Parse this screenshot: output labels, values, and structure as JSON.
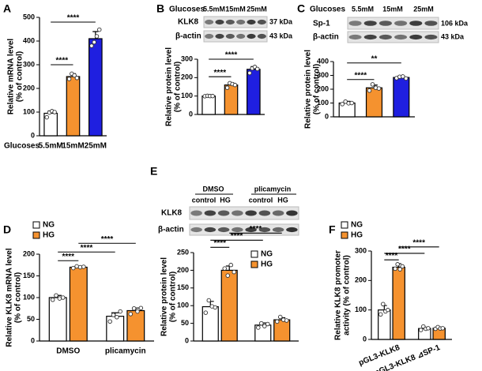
{
  "panel_labels": [
    "A",
    "B",
    "C",
    "D",
    "E",
    "F"
  ],
  "blots": [
    {
      "header": "Glucoses",
      "lanes": [
        "5.5mM",
        "15mM",
        "25mM"
      ],
      "rows": [
        {
          "name": "KLK8",
          "size": "37 kDa"
        },
        {
          "name": "β-actin",
          "size": "43 kDa"
        }
      ]
    },
    {
      "header": "Glucoses",
      "lanes": [
        "5.5mM",
        "15mM",
        "25mM"
      ],
      "rows": [
        {
          "name": "Sp-1",
          "size": "106 kDa"
        },
        {
          "name": "β-actin",
          "size": "43 kDa"
        }
      ]
    },
    {
      "groups": [
        "DMSO",
        "plicamycin"
      ],
      "lanes": [
        "control",
        "HG",
        "control",
        "HG"
      ],
      "rows": [
        {
          "name": "KLK8"
        },
        {
          "name": "β-actin"
        }
      ]
    }
  ],
  "chart_data": [
    {
      "type": "bar",
      "ylabel": [
        "Relative mRNA level",
        "(% of control)"
      ],
      "xlabel": "Glucoses",
      "categories": [
        "5.5mM",
        "15mM",
        "25mM"
      ],
      "values": [
        95,
        250,
        410
      ],
      "errors": [
        10,
        12,
        30
      ],
      "points": [
        [
          78,
          98,
          104,
          100
        ],
        [
          240,
          262,
          255,
          244
        ],
        [
          380,
          395,
          420,
          448
        ]
      ],
      "colors": [
        "#ffffff",
        "#f5922f",
        "#1f1fe0"
      ],
      "ylim": [
        0,
        500
      ],
      "yticks": [
        0,
        100,
        200,
        300,
        400,
        500
      ],
      "annotations": [
        "****",
        "****"
      ]
    },
    {
      "type": "bar",
      "ylabel": [
        "Relative protein level",
        "(% of control)"
      ],
      "categories": [
        null,
        null,
        null
      ],
      "values": [
        100,
        160,
        245
      ],
      "errors": [
        3,
        12,
        15
      ],
      "points": [
        [
          99,
          101,
          100,
          100
        ],
        [
          145,
          170,
          165,
          160
        ],
        [
          225,
          250,
          258,
          247
        ]
      ],
      "colors": [
        "#ffffff",
        "#f5922f",
        "#1f1fe0"
      ],
      "ylim": [
        0,
        300
      ],
      "yticks": [
        0,
        100,
        200,
        300
      ],
      "annotations": [
        "****",
        "****"
      ]
    },
    {
      "type": "bar",
      "ylabel": [
        "Relative protein level",
        "(% of control)"
      ],
      "categories": [
        null,
        null,
        null
      ],
      "values": [
        100,
        210,
        285
      ],
      "errors": [
        12,
        20,
        12
      ],
      "points": [
        [
          92,
          110,
          98,
          100
        ],
        [
          190,
          235,
          210,
          205
        ],
        [
          280,
          290,
          292,
          278
        ]
      ],
      "colors": [
        "#ffffff",
        "#f5922f",
        "#1f1fe0"
      ],
      "ylim": [
        0,
        400
      ],
      "yticks": [
        0,
        100,
        200,
        300,
        400
      ],
      "annotations": [
        "****",
        "**"
      ]
    },
    {
      "type": "grouped_bar",
      "ylabel": [
        "Relative KLK8 mRNA level",
        "(% of control)"
      ],
      "categories": [
        "DMSO",
        "plicamycin"
      ],
      "series": [
        {
          "name": "NG",
          "color": "#ffffff",
          "values": [
            100,
            57
          ],
          "errors": [
            5,
            8
          ],
          "points": [
            [
              95,
              105,
              98,
              100
            ],
            [
              45,
              60,
              55,
              68
            ]
          ]
        },
        {
          "name": "HG",
          "color": "#f5922f",
          "values": [
            170,
            70
          ],
          "errors": [
            2,
            6
          ],
          "points": [
            [
              168,
              172,
              170,
              171
            ],
            [
              62,
              75,
              68,
              76
            ]
          ]
        }
      ],
      "ylim": [
        0,
        200
      ],
      "yticks": [
        0,
        50,
        100,
        150,
        200
      ],
      "annotations": [
        "****",
        "****",
        "****"
      ]
    },
    {
      "type": "grouped_bar",
      "ylabel": [
        "Relative protein level",
        "(% of control)"
      ],
      "categories": [
        null,
        null
      ],
      "series": [
        {
          "name": "NG",
          "color": "#ffffff",
          "values": [
            97,
            45
          ],
          "errors": [
            15,
            6
          ],
          "points": [
            [
              80,
              115,
              98,
              95
            ],
            [
              38,
              50,
              42,
              48
            ]
          ]
        },
        {
          "name": "HG",
          "color": "#f5922f",
          "values": [
            200,
            60
          ],
          "errors": [
            12,
            6
          ],
          "points": [
            [
              205,
              185,
              215,
              195
            ],
            [
              55,
              68,
              60,
              58
            ]
          ]
        }
      ],
      "ylim": [
        0,
        250
      ],
      "yticks": [
        0,
        50,
        100,
        150,
        200,
        250
      ],
      "annotations": [
        "****",
        "****",
        "****"
      ]
    },
    {
      "type": "grouped_bar",
      "ylabel": [
        "Relative KLK8  promoter",
        "activity (% of control)"
      ],
      "categories": [
        "pGL3-KLK8",
        "pGL3-KLK8 ⊿SP-1"
      ],
      "series": [
        {
          "name": "NG",
          "color": "#ffffff",
          "values": [
            100,
            37
          ],
          "errors": [
            15,
            4
          ],
          "points": [
            [
              85,
              120,
              95,
              100
            ],
            [
              32,
              44,
              36,
              38
            ]
          ]
        },
        {
          "name": "HG",
          "color": "#f5922f",
          "values": [
            245,
            38
          ],
          "errors": [
            12,
            3
          ],
          "points": [
            [
              240,
              255,
              238,
              248
            ],
            [
              36,
              42,
              37,
              38
            ]
          ]
        }
      ],
      "ylim": [
        0,
        300
      ],
      "yticks": [
        0,
        100,
        200,
        300
      ],
      "annotations": [
        "****",
        "****",
        "****"
      ]
    }
  ]
}
